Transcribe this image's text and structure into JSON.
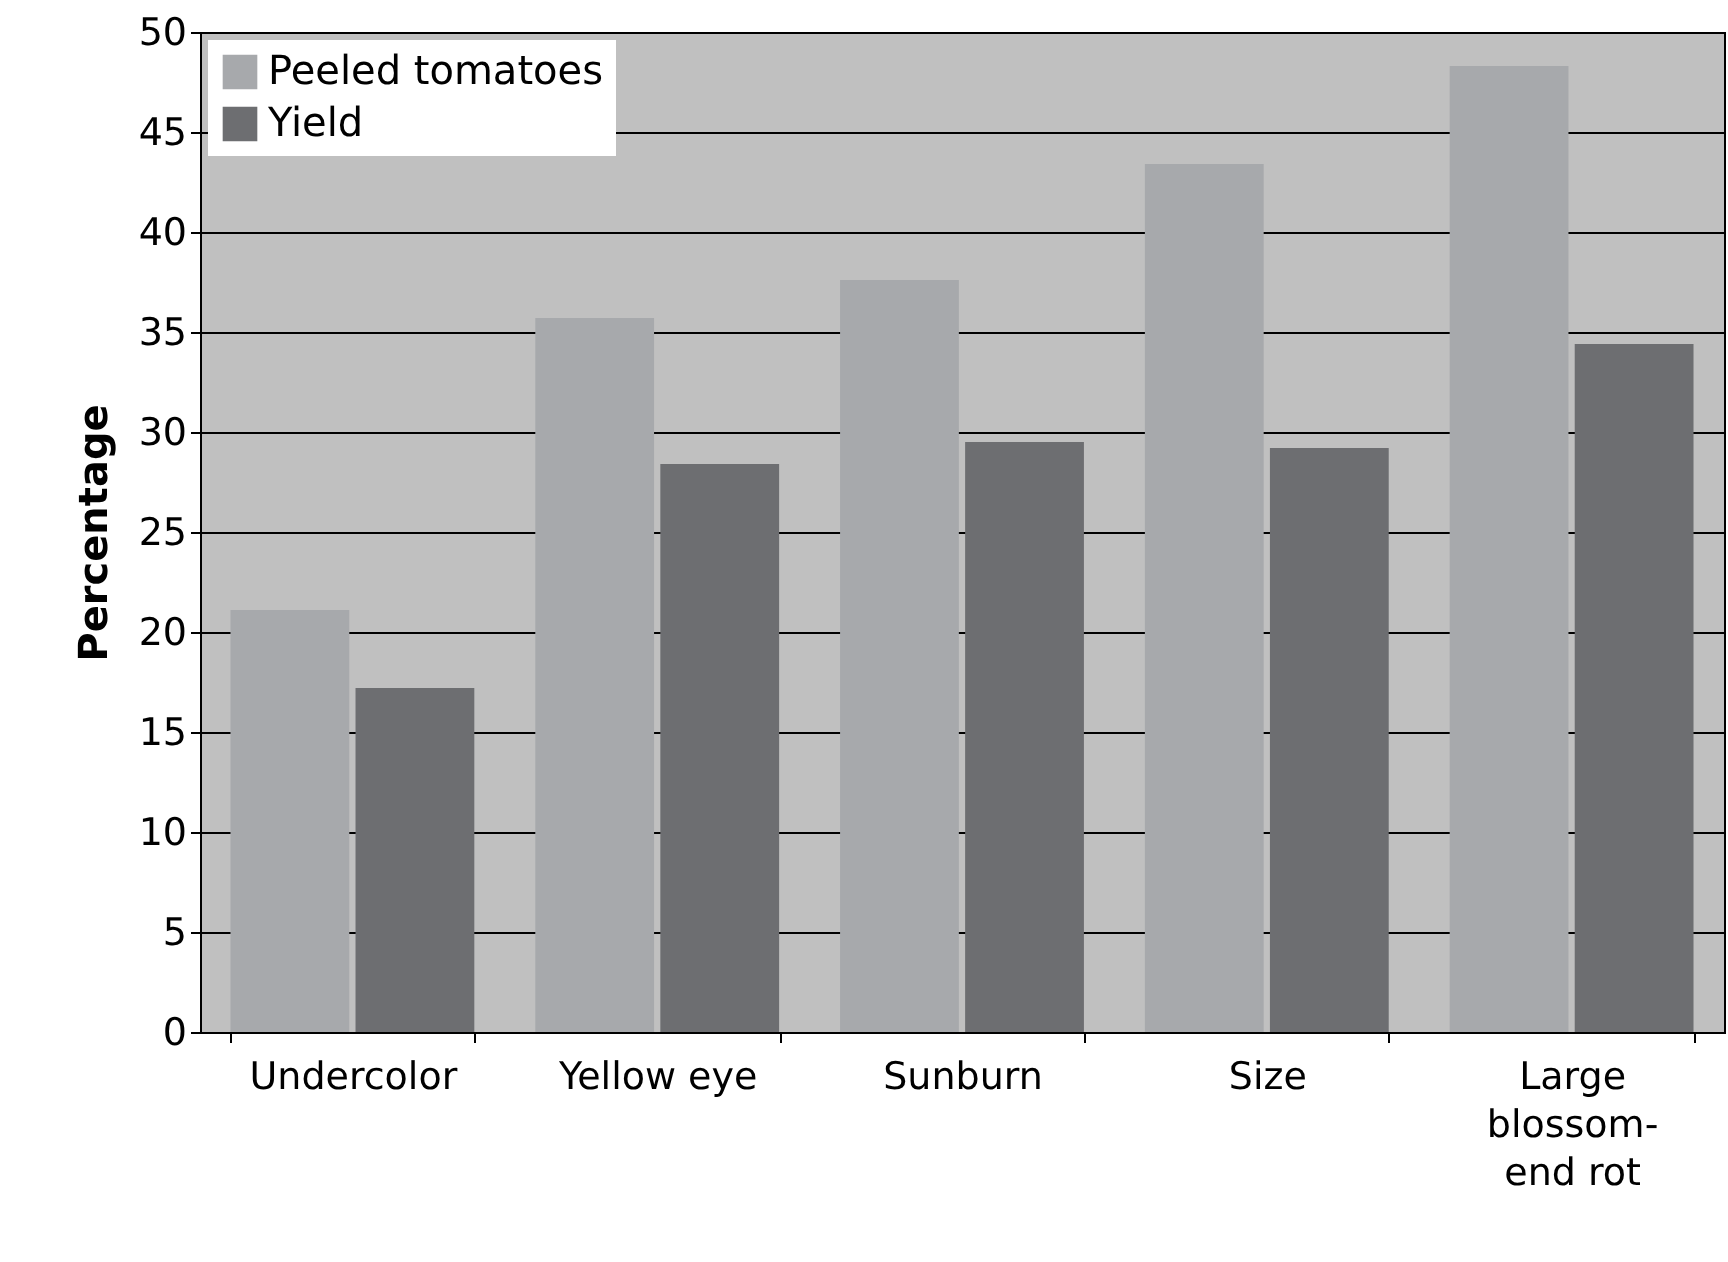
{
  "chart_data": {
    "type": "bar",
    "ylabel": "Percentage",
    "categories": [
      "Undercolor",
      "Yellow eye",
      "Sunburn",
      "Size",
      "Large blossom-end rot"
    ],
    "series": [
      {
        "name": "Peeled tomatoes",
        "color": "#a7a9ac",
        "values": [
          21.1,
          35.7,
          37.6,
          43.4,
          48.3
        ]
      },
      {
        "name": "Yield",
        "color": "#6d6e71",
        "values": [
          17.2,
          28.4,
          29.5,
          29.2,
          34.4
        ]
      }
    ],
    "ylim": [
      0,
      50
    ],
    "yticks": [
      0,
      5,
      10,
      15,
      20,
      25,
      30,
      35,
      40,
      45,
      50
    ],
    "grid": "y",
    "legend": "top left"
  }
}
